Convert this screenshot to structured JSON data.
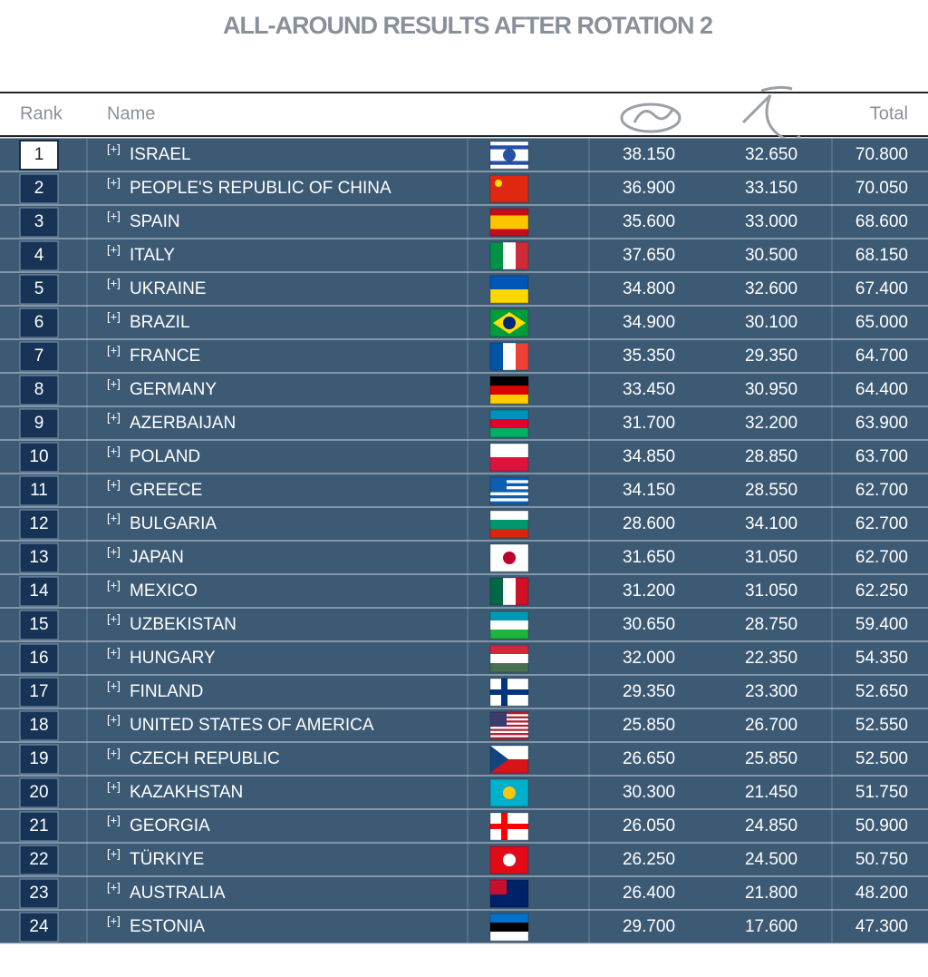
{
  "header": {
    "title": "ALL-AROUND RESULTS AFTER ROTATION 2"
  },
  "table": {
    "columns": [
      "Rank",
      "Name",
      "Total"
    ],
    "expand_label": "[+]",
    "rows": [
      [
        1,
        "ISRAEL",
        "38.150",
        "32.650",
        "70.800"
      ],
      [
        2,
        "PEOPLE'S REPUBLIC OF CHINA",
        "36.900",
        "33.150",
        "70.050"
      ],
      [
        3,
        "SPAIN",
        "35.600",
        "33.000",
        "68.600"
      ],
      [
        4,
        "ITALY",
        "37.650",
        "30.500",
        "68.150"
      ],
      [
        5,
        "UKRAINE",
        "34.800",
        "32.600",
        "67.400"
      ],
      [
        6,
        "BRAZIL",
        "34.900",
        "30.100",
        "65.000"
      ],
      [
        7,
        "FRANCE",
        "35.350",
        "29.350",
        "64.700"
      ],
      [
        8,
        "GERMANY",
        "33.450",
        "30.950",
        "64.400"
      ],
      [
        9,
        "AZERBAIJAN",
        "31.700",
        "32.200",
        "63.900"
      ],
      [
        10,
        "POLAND",
        "34.850",
        "28.850",
        "63.700"
      ],
      [
        11,
        "GREECE",
        "34.150",
        "28.550",
        "62.700"
      ],
      [
        12,
        "BULGARIA",
        "28.600",
        "34.100",
        "62.700"
      ],
      [
        13,
        "JAPAN",
        "31.650",
        "31.050",
        "62.700"
      ],
      [
        14,
        "MEXICO",
        "31.200",
        "31.050",
        "62.250"
      ],
      [
        15,
        "UZBEKISTAN",
        "30.650",
        "28.750",
        "59.400"
      ],
      [
        16,
        "HUNGARY",
        "32.000",
        "22.350",
        "54.350"
      ],
      [
        17,
        "FINLAND",
        "29.350",
        "23.300",
        "52.650"
      ],
      [
        18,
        "UNITED STATES OF AMERICA",
        "25.850",
        "26.700",
        "52.550"
      ],
      [
        19,
        "CZECH REPUBLIC",
        "26.650",
        "25.850",
        "52.500"
      ],
      [
        20,
        "KAZAKHSTAN",
        "30.300",
        "21.450",
        "51.750"
      ],
      [
        21,
        "GEORGIA",
        "26.050",
        "24.850",
        "50.900"
      ],
      [
        22,
        "TÜRKIYE",
        "26.250",
        "24.500",
        "50.750"
      ],
      [
        23,
        "AUSTRALIA",
        "26.400",
        "21.800",
        "48.200"
      ],
      [
        24,
        "ESTONIA",
        "29.700",
        "17.600",
        "47.300"
      ]
    ]
  }
}
